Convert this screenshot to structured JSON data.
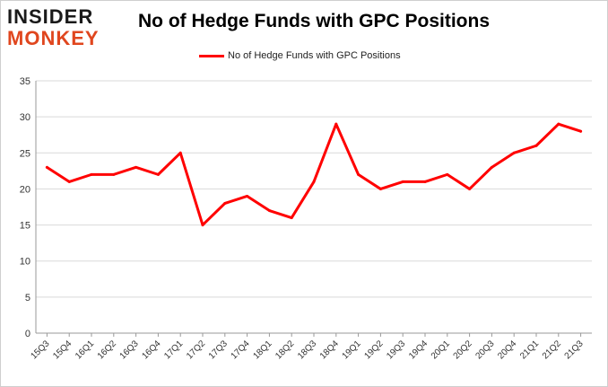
{
  "logo": {
    "line1": "INSIDER",
    "line2": "MONKEY"
  },
  "colors": {
    "line": "#ff0000",
    "logo_accent": "#e0461e",
    "grid": "#d9d9d9"
  },
  "chart_data": {
    "type": "line",
    "title": "No of Hedge Funds with GPC Positions",
    "legend_position": "top",
    "grid": true,
    "ylim": [
      0,
      35
    ],
    "yticks": [
      0,
      5,
      10,
      15,
      20,
      25,
      30,
      35
    ],
    "categories": [
      "15Q3",
      "15Q4",
      "16Q1",
      "16Q2",
      "16Q3",
      "16Q4",
      "17Q1",
      "17Q2",
      "17Q3",
      "17Q4",
      "18Q1",
      "18Q2",
      "18Q3",
      "18Q4",
      "19Q1",
      "19Q2",
      "19Q3",
      "19Q4",
      "20Q1",
      "20Q2",
      "20Q3",
      "20Q4",
      "21Q1",
      "21Q2",
      "21Q3"
    ],
    "series": [
      {
        "name": "No of Hedge Funds with GPC Positions",
        "values": [
          23,
          21,
          22,
          22,
          23,
          22,
          25,
          15,
          18,
          19,
          17,
          16,
          21,
          29,
          22,
          20,
          21,
          21,
          22,
          20,
          23,
          25,
          26,
          29,
          28
        ]
      }
    ]
  }
}
